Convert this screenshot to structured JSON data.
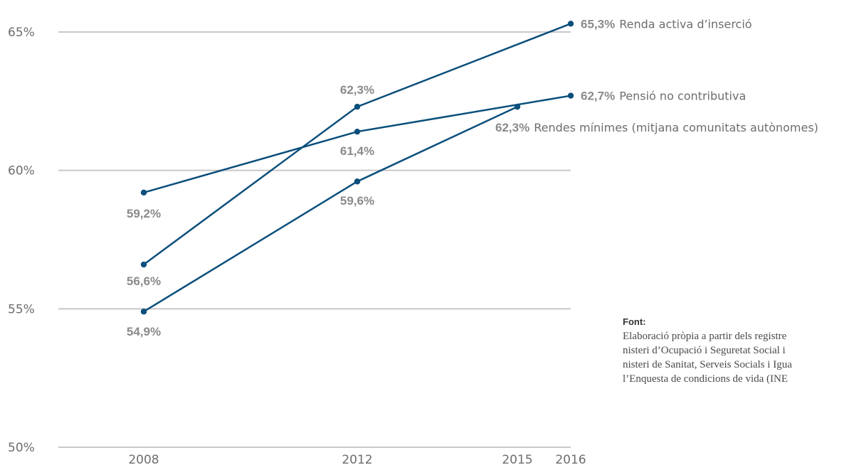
{
  "chart_data": {
    "type": "line",
    "x": [
      "2008",
      "2012",
      "2015",
      "2016"
    ],
    "y_ticks": [
      "50%",
      "55%",
      "60%",
      "65%"
    ],
    "ylim": [
      50,
      65.5
    ],
    "grid": true,
    "series": [
      {
        "name": "Renda activa d’inserció",
        "points": [
          {
            "x": 2008,
            "y": 56.6,
            "label": "56,6%"
          },
          {
            "x": 2012,
            "y": 62.3,
            "label": "62,3%"
          },
          {
            "x": 2016,
            "y": 65.3,
            "label": "65,3%"
          }
        ]
      },
      {
        "name": "Pensió no contributiva",
        "points": [
          {
            "x": 2008,
            "y": 59.2,
            "label": "59,2%"
          },
          {
            "x": 2012,
            "y": 61.4,
            "label": "61,4%"
          },
          {
            "x": 2016,
            "y": 62.7,
            "label": "62,7%"
          }
        ]
      },
      {
        "name": "Rendes mínimes (mitjana comunitats autònomes)",
        "points": [
          {
            "x": 2008,
            "y": 54.9,
            "label": "54,9%"
          },
          {
            "x": 2012,
            "y": 59.6,
            "label": "59,6%"
          },
          {
            "x": 2015,
            "y": 62.3,
            "label": "62,3%"
          }
        ]
      }
    ],
    "line_color": "#0b4f7c",
    "grid_color": "#c8c8c8"
  },
  "source": {
    "title": "Font:",
    "lines": [
      "Elaboració pròpia a partir dels registre",
      "nisteri d’Ocupació i Seguretat Social i",
      "nisteri de Sanitat, Serveis Socials i Igua",
      "l’Enquesta de condicions de vida (INE"
    ]
  }
}
